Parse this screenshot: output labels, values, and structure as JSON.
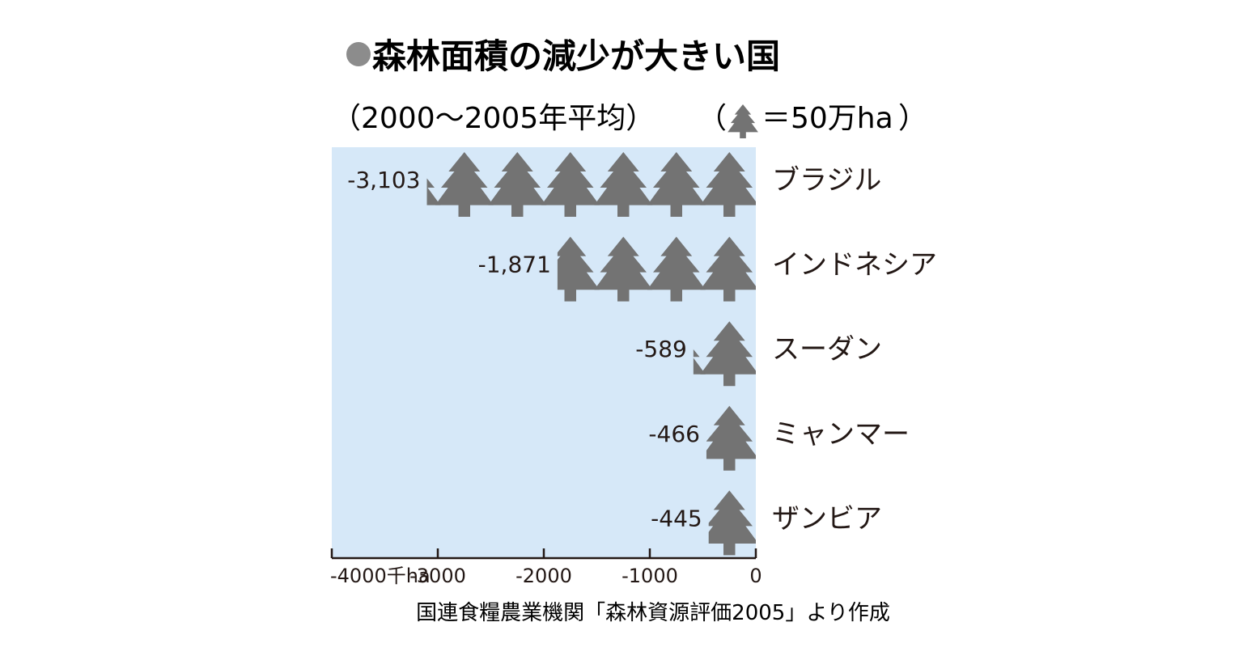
{
  "chart_data": {
    "type": "bar",
    "title": "森林面積の減少が大きい国",
    "subtitle": "（2000〜2005年平均）",
    "legend": {
      "open": "（",
      "text": "＝50万ha",
      "close": "）",
      "unit_value": 500
    },
    "categories": [
      "ブラジル",
      "インドネシア",
      "スーダン",
      "ミャンマー",
      "ザンビア"
    ],
    "values": [
      -3103,
      -1871,
      -589,
      -466,
      -445
    ],
    "value_labels": [
      "-3,103",
      "-1,871",
      "-589",
      "-466",
      "-445"
    ],
    "x_ticks": [
      {
        "value": -4000,
        "label": "-4000千ha"
      },
      {
        "value": -3000,
        "label": "-3000"
      },
      {
        "value": -2000,
        "label": "-2000"
      },
      {
        "value": -1000,
        "label": "-1000"
      },
      {
        "value": 0,
        "label": "0"
      }
    ],
    "xlim": [
      -4000,
      0
    ],
    "source": "国連食糧農業機関「森林資源評価2005」より作成",
    "colors": {
      "plot_background": "#d6e8f8",
      "tree": "#737373",
      "bullet": "#8c8c8c",
      "text": "#231815"
    }
  }
}
